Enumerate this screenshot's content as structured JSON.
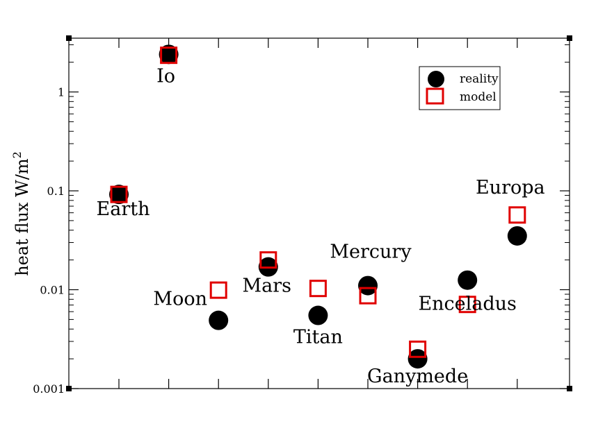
{
  "chart_data": {
    "type": "scatter",
    "ylabel": "heat flux W/m",
    "ylabel_superscript": "2",
    "yscale": "log",
    "ylim": [
      0.001,
      3.5
    ],
    "yticks": [
      "0.001",
      "0.01",
      "0.1",
      "1"
    ],
    "grid": false,
    "legend": {
      "placement": "top-right",
      "entries": [
        "reality",
        "model"
      ]
    },
    "categories": [
      "Earth",
      "Io",
      "Moon",
      "Mars",
      "Titan",
      "Mercury",
      "Ganymede",
      "Enceladus",
      "Europa"
    ],
    "series": [
      {
        "name": "reality",
        "marker": "filled-circle",
        "color": "#000000",
        "values": [
          0.092,
          2.4,
          0.0049,
          0.017,
          0.0055,
          0.011,
          0.002,
          0.0125,
          0.035
        ]
      },
      {
        "name": "model",
        "marker": "open-square",
        "color": "#e00000",
        "values": [
          0.092,
          2.35,
          0.0099,
          0.02,
          0.0103,
          0.0087,
          0.0025,
          0.0071,
          0.057
        ]
      }
    ]
  }
}
